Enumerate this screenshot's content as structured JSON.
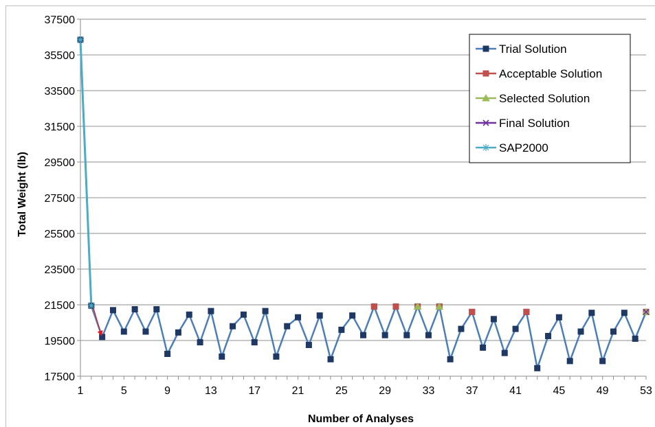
{
  "chart_data": {
    "type": "line",
    "title": "",
    "xlabel": "Number of Analyses",
    "ylabel": "Total Weight (lb)",
    "xlim": [
      1,
      53
    ],
    "ylim": [
      17500,
      37500
    ],
    "xticks": [
      1,
      5,
      9,
      13,
      17,
      21,
      25,
      29,
      33,
      37,
      41,
      45,
      49,
      53
    ],
    "yticks": [
      17500,
      19500,
      21500,
      23500,
      25500,
      27500,
      29500,
      31500,
      33500,
      35500,
      37500
    ],
    "grid": true,
    "legend_position": "top-right",
    "colors": {
      "trial": "#4a7ebb",
      "trial_marker": "#1f3864",
      "acceptable": "#c0504d",
      "selected": "#9bbb59",
      "final": "#7030a0",
      "sap2000": "#4bacc6",
      "arrow": "#e31a1c",
      "grid": "#8c8c8c",
      "axis": "#8c8c8c"
    },
    "series": [
      {
        "name": "Trial Solution",
        "marker": "square",
        "x": [
          1,
          2,
          3,
          4,
          5,
          6,
          7,
          8,
          9,
          10,
          11,
          12,
          13,
          14,
          15,
          16,
          17,
          18,
          19,
          20,
          21,
          22,
          23,
          24,
          25,
          26,
          27,
          28,
          29,
          30,
          31,
          32,
          33,
          34,
          35,
          36,
          37,
          38,
          39,
          40,
          41,
          42,
          43,
          44,
          45,
          46,
          47,
          48,
          49,
          50,
          51,
          52,
          53
        ],
        "values": [
          36350,
          21450,
          19700,
          21200,
          20000,
          21250,
          20000,
          21250,
          18750,
          19950,
          20950,
          19400,
          21150,
          18600,
          20300,
          20950,
          19400,
          21150,
          18600,
          20300,
          20800,
          19250,
          20900,
          18450,
          20100,
          20900,
          19800,
          21400,
          19800,
          21400,
          19800,
          21400,
          19800,
          21400,
          18450,
          20150,
          21100,
          19100,
          20700,
          18800,
          20150,
          21100,
          17950,
          19750,
          20800,
          18350,
          20000,
          21050,
          18350,
          20000,
          21050,
          19600,
          21100
        ]
      },
      {
        "name": "Acceptable Solution",
        "marker": "square",
        "x": [
          28,
          30,
          32,
          34,
          37,
          42,
          53
        ],
        "values": [
          21400,
          21400,
          21400,
          21400,
          21100,
          21100,
          21100
        ]
      },
      {
        "name": "Selected Solution",
        "marker": "triangle",
        "x": [
          32,
          34,
          53
        ],
        "values": [
          21400,
          21400,
          21100
        ]
      },
      {
        "name": "Final Solution",
        "marker": "x",
        "x": [
          53
        ],
        "values": [
          21100
        ]
      },
      {
        "name": "SAP2000",
        "marker": "star",
        "x": [
          1,
          2
        ],
        "values": [
          36350,
          21450
        ]
      }
    ],
    "annotations": [
      {
        "type": "arrow",
        "from": [
          2,
          21450
        ],
        "to": [
          3,
          19700
        ]
      }
    ]
  }
}
